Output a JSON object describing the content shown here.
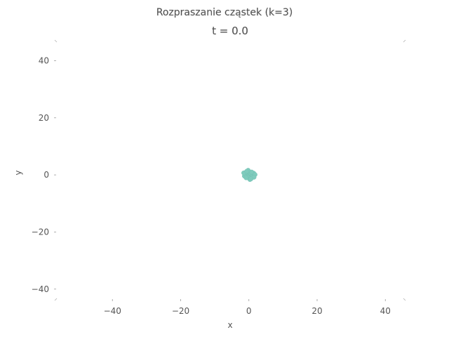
{
  "chart_data": {
    "type": "scatter",
    "title": "Rozpraszanie cząstek (k=3)",
    "subtitle": "t = 0.0",
    "xlabel": "x",
    "ylabel": "y",
    "xlim": [
      -56.5,
      45.5
    ],
    "ylim": [
      -43.5,
      47
    ],
    "xticks": [
      -40,
      -20,
      0,
      20,
      40
    ],
    "xtick_labels": [
      "−40",
      "−20",
      "0",
      "20",
      "40"
    ],
    "yticks": [
      40,
      20,
      0,
      -20,
      -40
    ],
    "ytick_labels": [
      "40",
      "20",
      "0",
      "−20",
      "−40"
    ],
    "grid": false,
    "point_color": "#80cbbd",
    "series": [
      {
        "x": [
          0.0,
          0.5,
          -0.5,
          1.0,
          -1.0,
          0.0,
          0.0,
          1.4,
          -1.3,
          0.8,
          -0.8,
          0.9,
          -0.9,
          1.8,
          -0.2,
          0.3,
          1.5,
          -1.5,
          0.6,
          -0.6
        ],
        "y": [
          0.0,
          0.5,
          -0.5,
          -0.3,
          0.3,
          1.1,
          -1.1,
          0.6,
          -0.4,
          1.0,
          -1.0,
          -0.9,
          0.9,
          0.1,
          1.6,
          -1.6,
          -0.8,
          0.7,
          -1.4,
          1.3
        ]
      }
    ]
  }
}
